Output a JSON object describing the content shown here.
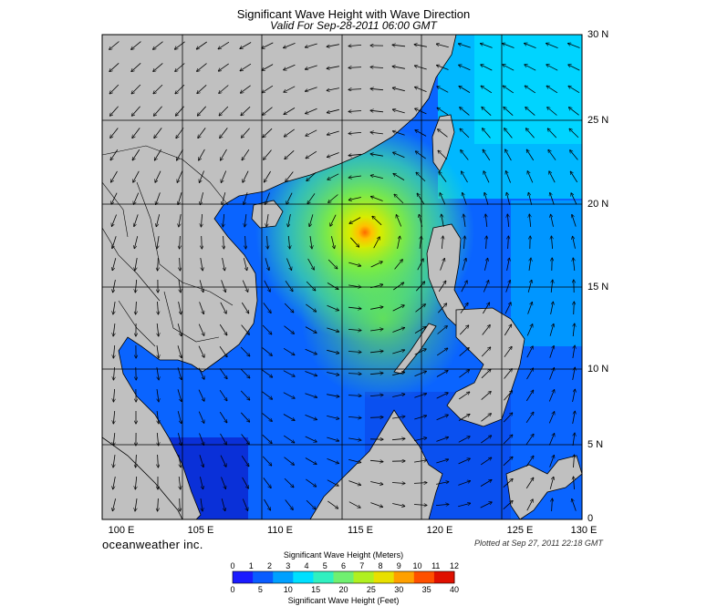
{
  "title": "Significant Wave Height with Wave Direction",
  "subtitle": "Valid For Sep-28-2011 06:00 GMT",
  "lat_labels": [
    "30 N",
    "25 N",
    "20 N",
    "15 N",
    "10 N",
    "5 N",
    "0"
  ],
  "lon_labels": [
    "100 E",
    "105 E",
    "110 E",
    "115 E",
    "120 E",
    "125 E",
    "130 E"
  ],
  "brand": "oceanweather inc.",
  "plotted": "Plotted at Sep 27, 2011 22:18 GMT",
  "colorbar": {
    "top_title": "Significant Wave Height (Meters)",
    "bottom_title": "Significant Wave Height (Feet)",
    "meters": [
      "0",
      "1",
      "2",
      "3",
      "4",
      "5",
      "6",
      "7",
      "8",
      "9",
      "10",
      "11",
      "12"
    ],
    "feet": [
      "0",
      "5",
      "10",
      "15",
      "20",
      "25",
      "30",
      "35",
      "40"
    ],
    "colors": [
      "#1a1aff",
      "#0a5cff",
      "#00a0ff",
      "#00e0ff",
      "#30f0c0",
      "#70f070",
      "#b0f020",
      "#e8e000",
      "#ffa000",
      "#ff5000",
      "#e01000"
    ]
  },
  "colors": {
    "land": "#c0c0c0",
    "grid": "#000000",
    "storm_core": "#ff6a00"
  }
}
